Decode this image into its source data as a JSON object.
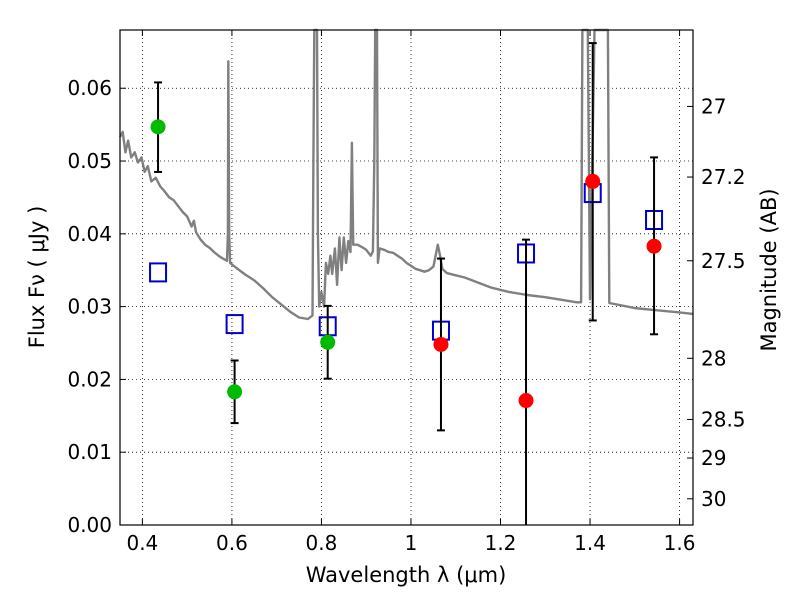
{
  "chart_data": {
    "type": "scatter",
    "xlabel": "Wavelength  λ (μm)",
    "ylabel": "Flux  Fν  ( μJy )",
    "ylabel_right": "Magnitude (AB)",
    "xlim": [
      0.35,
      1.63
    ],
    "ylim": [
      0.0,
      0.068
    ],
    "x_ticks": [
      0.4,
      0.6,
      0.8,
      1.0,
      1.2,
      1.4,
      1.6
    ],
    "x_tick_labels": [
      "0.4",
      "0.6",
      "0.8",
      "1",
      "1.2",
      "1.4",
      "1.6"
    ],
    "y_ticks": [
      0.0,
      0.01,
      0.02,
      0.03,
      0.04,
      0.05,
      0.06
    ],
    "y_tick_labels": [
      "0.00",
      "0.01",
      "0.02",
      "0.03",
      "0.04",
      "0.05",
      "0.06"
    ],
    "right_ticks": [
      {
        "flux": 0.0575,
        "label": "27"
      },
      {
        "flux": 0.0478,
        "label": "27.2"
      },
      {
        "flux": 0.0363,
        "label": "27.5"
      },
      {
        "flux": 0.0229,
        "label": "28"
      },
      {
        "flux": 0.0145,
        "label": "28.5"
      },
      {
        "flux": 0.0092,
        "label": "29"
      },
      {
        "flux": 0.0036,
        "label": "30"
      }
    ],
    "grid": true,
    "colors": {
      "green": "#00bb00",
      "red": "#ff0000",
      "model_box": "#0000cc",
      "model_line": "#808080",
      "errorbar": "#000000"
    },
    "series": [
      {
        "marker": "green-circle",
        "points": [
          {
            "x": 0.435,
            "y": 0.0547,
            "err_low": 0.0485,
            "err_high": 0.0608
          },
          {
            "x": 0.606,
            "y": 0.0183,
            "err_low": 0.014,
            "err_high": 0.0226
          },
          {
            "x": 0.814,
            "y": 0.0251,
            "err_low": 0.0201,
            "err_high": 0.0301
          }
        ]
      },
      {
        "marker": "red-circle",
        "points": [
          {
            "x": 1.067,
            "y": 0.0248,
            "err_low": 0.013,
            "err_high": 0.0366
          },
          {
            "x": 1.257,
            "y": 0.0171,
            "err_low": 0.0,
            "err_high": 0.0392
          },
          {
            "x": 1.406,
            "y": 0.0472,
            "err_low": 0.0281,
            "err_high": 0.0662
          },
          {
            "x": 1.543,
            "y": 0.0383,
            "err_low": 0.0262,
            "err_high": 0.0505
          }
        ]
      },
      {
        "marker": "blue-open-square",
        "points": [
          {
            "x": 0.435,
            "y": 0.0347
          },
          {
            "x": 0.606,
            "y": 0.0276
          },
          {
            "x": 0.814,
            "y": 0.0273
          },
          {
            "x": 1.067,
            "y": 0.0267
          },
          {
            "x": 1.257,
            "y": 0.0373
          },
          {
            "x": 1.406,
            "y": 0.0456
          },
          {
            "x": 1.543,
            "y": 0.0419
          }
        ]
      },
      {
        "marker": "gray-line",
        "points": [
          [
            0.35,
            0.0533
          ],
          [
            0.356,
            0.054
          ],
          [
            0.362,
            0.0512
          ],
          [
            0.368,
            0.0528
          ],
          [
            0.375,
            0.0505
          ],
          [
            0.383,
            0.0512
          ],
          [
            0.39,
            0.0498
          ],
          [
            0.398,
            0.0505
          ],
          [
            0.405,
            0.0485
          ],
          [
            0.412,
            0.0493
          ],
          [
            0.42,
            0.0472
          ],
          [
            0.43,
            0.0477
          ],
          [
            0.44,
            0.0465
          ],
          [
            0.45,
            0.0458
          ],
          [
            0.46,
            0.045
          ],
          [
            0.47,
            0.0446
          ],
          [
            0.48,
            0.0438
          ],
          [
            0.49,
            0.043
          ],
          [
            0.5,
            0.0424
          ],
          [
            0.51,
            0.041
          ],
          [
            0.515,
            0.0418
          ],
          [
            0.52,
            0.0402
          ],
          [
            0.53,
            0.0392
          ],
          [
            0.54,
            0.0385
          ],
          [
            0.55,
            0.0381
          ],
          [
            0.56,
            0.0375
          ],
          [
            0.57,
            0.037
          ],
          [
            0.58,
            0.0366
          ],
          [
            0.589,
            0.0363
          ],
          [
            0.591,
            0.04
          ],
          [
            0.592,
            0.0637
          ],
          [
            0.594,
            0.04
          ],
          [
            0.596,
            0.036
          ],
          [
            0.61,
            0.0353
          ],
          [
            0.63,
            0.0344
          ],
          [
            0.65,
            0.0336
          ],
          [
            0.67,
            0.0325
          ],
          [
            0.69,
            0.0313
          ],
          [
            0.71,
            0.0303
          ],
          [
            0.73,
            0.0293
          ],
          [
            0.75,
            0.0285
          ],
          [
            0.77,
            0.0283
          ],
          [
            0.78,
            0.0288
          ],
          [
            0.782,
            0.05
          ],
          [
            0.784,
            0.068
          ],
          [
            0.79,
            0.068
          ],
          [
            0.792,
            0.04
          ],
          [
            0.795,
            0.03
          ],
          [
            0.8,
            0.032
          ],
          [
            0.806,
            0.03
          ],
          [
            0.81,
            0.036
          ],
          [
            0.815,
            0.0345
          ],
          [
            0.82,
            0.037
          ],
          [
            0.824,
            0.0345
          ],
          [
            0.83,
            0.038
          ],
          [
            0.835,
            0.033
          ],
          [
            0.84,
            0.0395
          ],
          [
            0.845,
            0.035
          ],
          [
            0.85,
            0.0395
          ],
          [
            0.855,
            0.036
          ],
          [
            0.86,
            0.039
          ],
          [
            0.865,
            0.0375
          ],
          [
            0.868,
            0.0525
          ],
          [
            0.871,
            0.0385
          ],
          [
            0.88,
            0.0385
          ],
          [
            0.89,
            0.0382
          ],
          [
            0.9,
            0.0378
          ],
          [
            0.91,
            0.037
          ],
          [
            0.915,
            0.0376
          ],
          [
            0.918,
            0.05
          ],
          [
            0.92,
            0.068
          ],
          [
            0.924,
            0.068
          ],
          [
            0.926,
            0.036
          ],
          [
            0.93,
            0.038
          ],
          [
            0.94,
            0.0378
          ],
          [
            0.95,
            0.0375
          ],
          [
            0.96,
            0.0374
          ],
          [
            0.97,
            0.037
          ],
          [
            0.98,
            0.0366
          ],
          [
            0.99,
            0.036
          ],
          [
            1.0,
            0.0356
          ],
          [
            1.01,
            0.0352
          ],
          [
            1.02,
            0.035
          ],
          [
            1.03,
            0.0348
          ],
          [
            1.04,
            0.035
          ],
          [
            1.05,
            0.0355
          ],
          [
            1.06,
            0.0385
          ],
          [
            1.065,
            0.037
          ],
          [
            1.07,
            0.0352
          ],
          [
            1.08,
            0.0346
          ],
          [
            1.1,
            0.0343
          ],
          [
            1.12,
            0.034
          ],
          [
            1.15,
            0.0333
          ],
          [
            1.18,
            0.0326
          ],
          [
            1.22,
            0.032
          ],
          [
            1.26,
            0.0316
          ],
          [
            1.3,
            0.0313
          ],
          [
            1.34,
            0.0309
          ],
          [
            1.37,
            0.0306
          ],
          [
            1.38,
            0.0306
          ],
          [
            1.383,
            0.068
          ],
          [
            1.395,
            0.068
          ],
          [
            1.4,
            0.031
          ],
          [
            1.41,
            0.068
          ],
          [
            1.44,
            0.068
          ],
          [
            1.443,
            0.0305
          ],
          [
            1.5,
            0.0298
          ],
          [
            1.55,
            0.0295
          ],
          [
            1.6,
            0.0292
          ],
          [
            1.63,
            0.029
          ]
        ]
      }
    ]
  }
}
